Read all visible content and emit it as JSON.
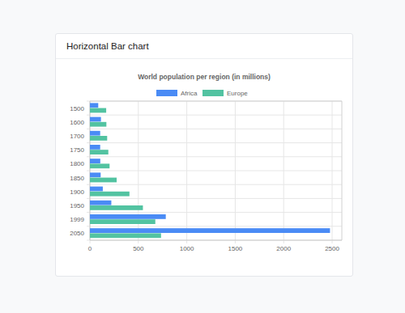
{
  "panel_title": "Horizontal Bar chart",
  "chart_data": {
    "type": "bar",
    "orientation": "horizontal",
    "title": "World population per region (in millions)",
    "categories": [
      "1500",
      "1600",
      "1700",
      "1750",
      "1800",
      "1850",
      "1900",
      "1950",
      "1999",
      "2050"
    ],
    "series": [
      {
        "name": "Africa",
        "color": "#4a8bf5",
        "values": [
          86,
          114,
          106,
          106,
          107,
          111,
          133,
          221,
          783,
          2478
        ]
      },
      {
        "name": "Europe",
        "color": "#52c3a1",
        "values": [
          168,
          170,
          178,
          190,
          203,
          276,
          408,
          547,
          675,
          734
        ]
      }
    ],
    "xlim": [
      0,
      2600
    ],
    "xticks": [
      0,
      500,
      1000,
      1500,
      2000,
      2500
    ],
    "grid": true,
    "legend": "top"
  }
}
